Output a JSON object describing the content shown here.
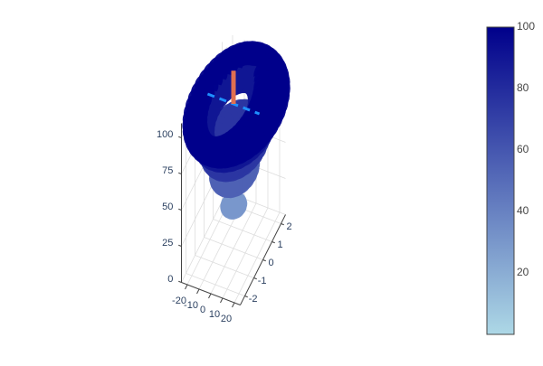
{
  "chart_data": {
    "type": "scatter3d",
    "title": "",
    "description_axes": {
      "x": {
        "ticks": [
          -20,
          -10,
          0,
          10,
          20
        ],
        "range": [
          -25,
          25
        ]
      },
      "y": {
        "ticks": [
          -2,
          -1,
          0,
          1,
          2
        ],
        "range": [
          -2.5,
          2.5
        ]
      },
      "z": {
        "ticks": [
          0,
          25,
          50,
          75,
          100
        ],
        "range": [
          0,
          110
        ]
      }
    },
    "colorbar": {
      "min": 0,
      "max": 100,
      "ticks": [
        20,
        40,
        60,
        80,
        100
      ],
      "colorscale": [
        "#add8e6",
        "#00008b"
      ]
    },
    "grid": true,
    "marker_series": {
      "name": "",
      "value_rule": "marker color = z, marker radius grows with z",
      "rings": [
        {
          "z": 30,
          "radius": 2.2,
          "count": 10
        },
        {
          "z": 55,
          "radius": 9,
          "count": 22
        },
        {
          "z": 75,
          "radius": 15,
          "count": 30
        },
        {
          "z": 90,
          "radius": 21,
          "count": 36
        },
        {
          "z": 100,
          "radius": 26,
          "count": 44
        }
      ]
    },
    "line_series": [
      {
        "name": "",
        "color": "#1e90ff",
        "style": "dashed",
        "points": [
          [
            -22,
            0,
            100
          ],
          [
            -11,
            0,
            100
          ],
          [
            0,
            0,
            100
          ],
          [
            11,
            0,
            100
          ],
          [
            22,
            0,
            100
          ]
        ]
      },
      {
        "name": "",
        "color": "#e07050",
        "style": "solid",
        "points": [
          [
            0,
            0,
            100
          ],
          [
            0,
            0,
            123
          ]
        ]
      }
    ]
  },
  "colors": {
    "axis_text": "#2a3f5f",
    "grid": "#dddddd",
    "colorbar_border": "#444444"
  }
}
